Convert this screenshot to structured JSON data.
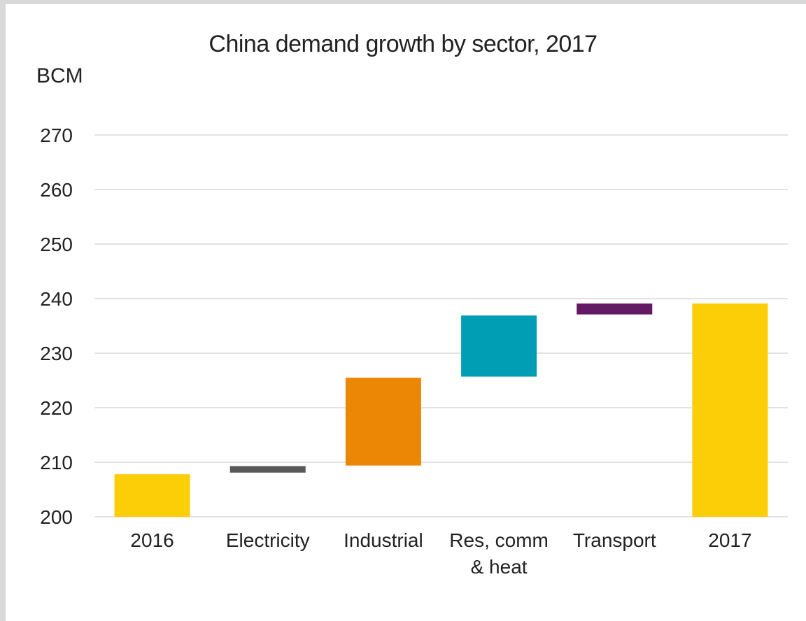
{
  "chart_data": {
    "type": "bar",
    "subtype": "waterfall",
    "title": "China demand growth by sector, 2017",
    "ylabel": "BCM",
    "xlabel": "",
    "ylim": [
      200,
      270
    ],
    "yticks": [
      "200",
      "210",
      "220",
      "230",
      "240",
      "250",
      "260",
      "270"
    ],
    "grid": true,
    "legend": "none",
    "categories": [
      {
        "label": [
          "2016"
        ],
        "start": 200,
        "end": 207.8,
        "color": "#fbce07"
      },
      {
        "label": [
          "Electricity"
        ],
        "start": 208.1,
        "end": 209.3,
        "color": "#595959"
      },
      {
        "label": [
          "Industrial"
        ],
        "start": 209.4,
        "end": 225.5,
        "color": "#eb8705"
      },
      {
        "label": [
          "Res, comm",
          "& heat"
        ],
        "start": 225.7,
        "end": 236.9,
        "color": "#009eb4"
      },
      {
        "label": [
          "Transport"
        ],
        "start": 237.1,
        "end": 239.1,
        "color": "#641964"
      },
      {
        "label": [
          "2017"
        ],
        "start": 200,
        "end": 239.1,
        "color": "#fbce07"
      }
    ]
  }
}
